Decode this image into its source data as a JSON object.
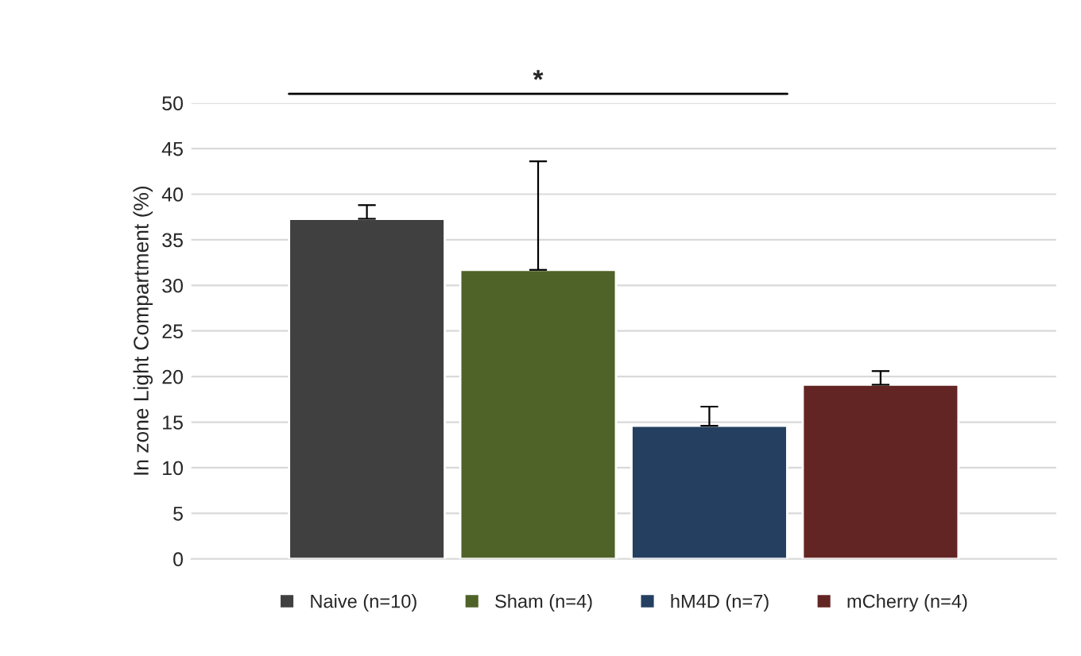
{
  "chart_data": {
    "type": "bar",
    "ylabel": "In zone Light Compartment (%)",
    "categories": [
      null
    ],
    "series": [
      {
        "name": "Naive (n=10)",
        "color": "#404040",
        "values": [
          37.3
        ],
        "errors": [
          [
            37.3,
            38.8
          ]
        ]
      },
      {
        "name": "Sham (n=4)",
        "color": "#4f6228",
        "values": [
          31.7
        ],
        "errors": [
          [
            31.7,
            43.6
          ]
        ]
      },
      {
        "name": "hM4D (n=7)",
        "color": "#243f60",
        "values": [
          14.6
        ],
        "errors": [
          [
            14.6,
            16.7
          ]
        ]
      },
      {
        "name": "mCherry (n=4)",
        "color": "#632523",
        "values": [
          19.1
        ],
        "errors": [
          [
            19.1,
            20.6
          ]
        ]
      }
    ],
    "ylim": [
      0,
      50
    ],
    "yticks": [
      0,
      5,
      10,
      15,
      20,
      25,
      30,
      35,
      40,
      45,
      50
    ],
    "grid": "y",
    "legend": "bottom",
    "annotations": [
      "*"
    ]
  }
}
